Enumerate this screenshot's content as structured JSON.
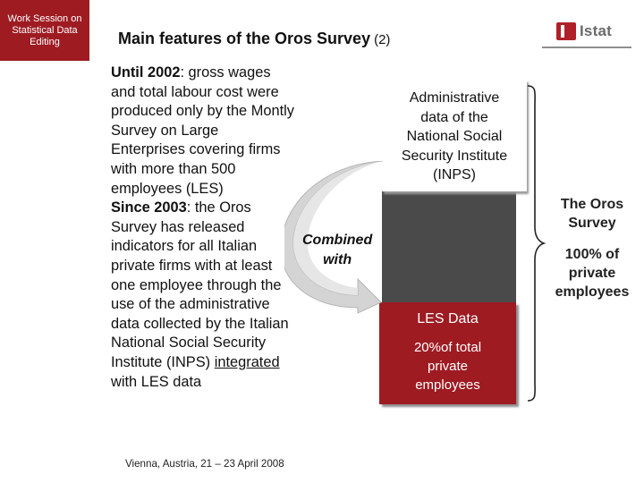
{
  "header": {
    "side_tab": [
      "Work Session on",
      "Statistical Data",
      "Editing"
    ],
    "title": "Main features of the Oros Survey",
    "title_suffix": "(2)",
    "logo_text": "Istat"
  },
  "body": {
    "p1_lead": "Until 2002",
    "p1_rest": ": gross wages and total labour cost were produced only by the Montly Survey on Large Enterprises covering firms with more than 500 employees (LES)",
    "p2_lead": "Since 2003",
    "p2_rest": ": the Oros Survey has released indicators for all Italian private firms with at least one employee through the use of the administrative data collected by the Italian National Social Security Institute (INPS)",
    "p2_underlined": "integrated",
    "p2_tail": "with LES data"
  },
  "diagram": {
    "admin_box": [
      "Administrative",
      "data of the",
      "National Social",
      "Security Institute",
      "(INPS)"
    ],
    "combined": [
      "Combined",
      "with"
    ],
    "les_box_title": "LES Data",
    "les_box_sub": [
      "20%of total",
      "private",
      "employees"
    ],
    "oros_title": [
      "The Oros",
      "Survey"
    ],
    "oros_coverage": [
      "100% of",
      "private",
      "employees"
    ]
  },
  "footer": {
    "text": "Vienna, Austria, 21 – 23 April  2008"
  },
  "colors": {
    "brand_red": "#9e1b22",
    "arrow_gray": "#d4d4d4",
    "panel_dark": "#4a4a4a"
  }
}
